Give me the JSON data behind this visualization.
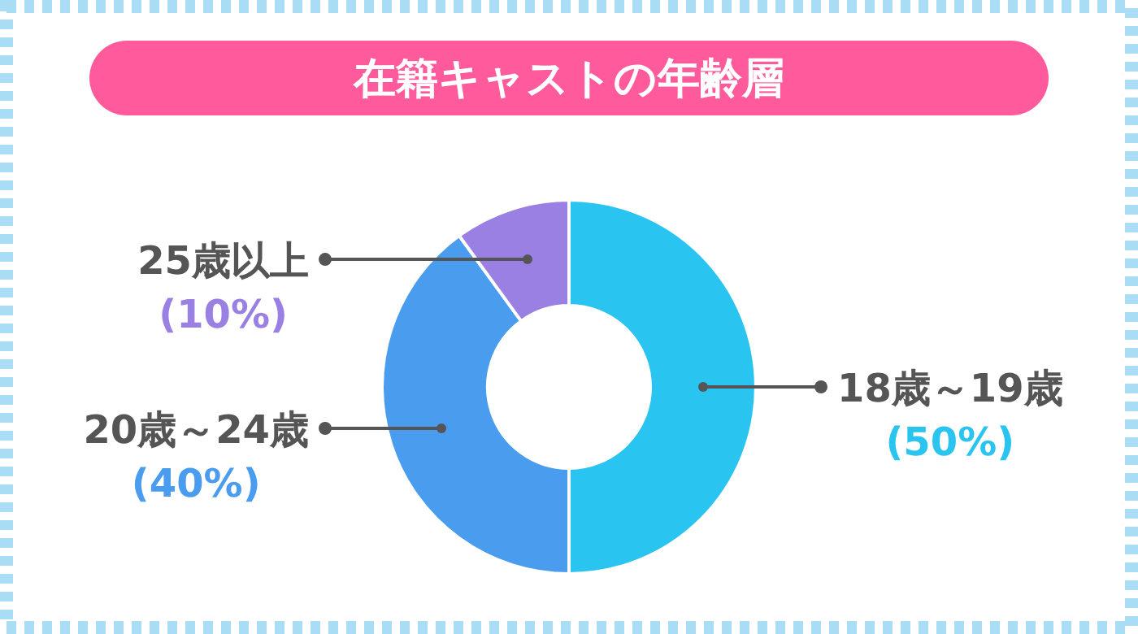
{
  "chart_data": {
    "type": "donut",
    "title": "在籍キャストの年齢層",
    "categories": [
      "18歳～19歳",
      "20歳～24歳",
      "25歳以上"
    ],
    "values": [
      50,
      40,
      10
    ],
    "value_labels": [
      "(50%)",
      "(40%)",
      "(10%)"
    ],
    "colors": [
      "#29c4ef",
      "#4a9cef",
      "#9a80e2"
    ]
  }
}
